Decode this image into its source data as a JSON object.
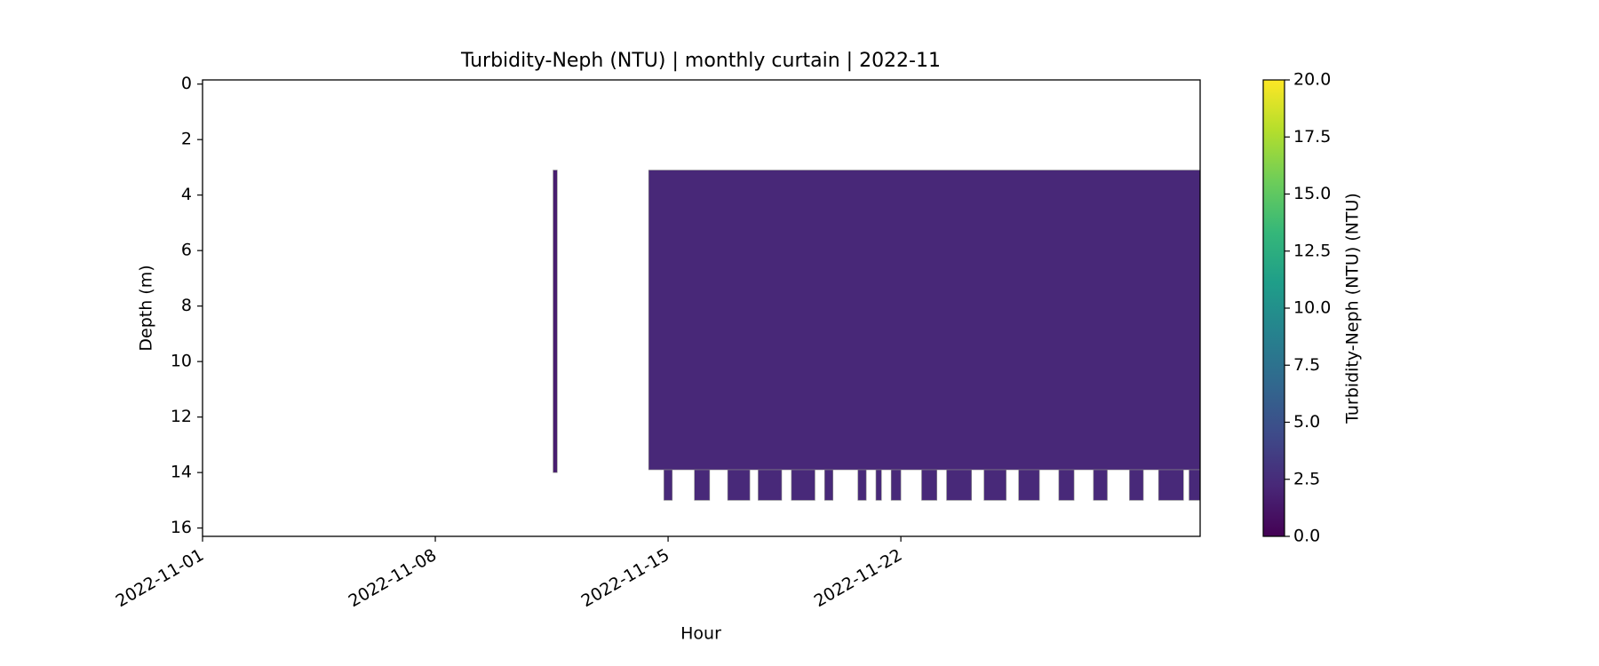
{
  "chart_data": {
    "type": "curtain",
    "title": "Turbidity-Neph (NTU) | monthly curtain | 2022-11",
    "xlabel": "Hour",
    "ylabel": "Depth (m)",
    "colorbar_label": "Turbidity-Neph (NTU) (NTU)",
    "colormap": "viridis",
    "xlim": [
      "2022-11-01",
      "2022-12-01"
    ],
    "xticks": [
      "2022-11-01",
      "2022-11-08",
      "2022-11-15",
      "2022-11-22"
    ],
    "ylim": [
      16.3,
      -0.15
    ],
    "yticks": [
      0,
      2,
      4,
      6,
      8,
      10,
      12,
      14,
      16
    ],
    "clim": [
      0,
      20
    ],
    "cticks": [
      {
        "value": 0,
        "label": "0.0"
      },
      {
        "value": 2.5,
        "label": "2.5"
      },
      {
        "value": 5,
        "label": "5.0"
      },
      {
        "value": 7.5,
        "label": "7.5"
      },
      {
        "value": 10,
        "label": "10.0"
      },
      {
        "value": 12.5,
        "label": "12.5"
      },
      {
        "value": 15,
        "label": "15.0"
      },
      {
        "value": 17.5,
        "label": "17.5"
      },
      {
        "value": 20,
        "label": "20.0"
      }
    ],
    "blocks": [
      {
        "start": "2022-11-11T13:00",
        "end": "2022-11-11T16:00",
        "top": 3.1,
        "bottom": 14.0,
        "value": 1.6
      },
      {
        "start": "2022-11-14T10:00",
        "end": "2022-12-01T00:00",
        "top": 3.1,
        "bottom": 13.9,
        "value": 2.2
      },
      {
        "start": "2022-11-14T21:00",
        "end": "2022-11-15T03:00",
        "top": 13.9,
        "bottom": 15.0,
        "value": 2.3
      },
      {
        "start": "2022-11-15T19:00",
        "end": "2022-11-16T06:00",
        "top": 13.9,
        "bottom": 15.0,
        "value": 2.3
      },
      {
        "start": "2022-11-16T19:00",
        "end": "2022-11-17T11:00",
        "top": 13.9,
        "bottom": 15.0,
        "value": 2.3
      },
      {
        "start": "2022-11-17T17:00",
        "end": "2022-11-18T10:00",
        "top": 13.9,
        "bottom": 15.0,
        "value": 2.3
      },
      {
        "start": "2022-11-18T17:00",
        "end": "2022-11-19T10:00",
        "top": 13.9,
        "bottom": 15.0,
        "value": 2.3
      },
      {
        "start": "2022-11-19T17:00",
        "end": "2022-11-19T23:00",
        "top": 13.9,
        "bottom": 15.0,
        "value": 2.3
      },
      {
        "start": "2022-11-20T17:00",
        "end": "2022-11-20T23:00",
        "top": 13.9,
        "bottom": 15.0,
        "value": 2.3
      },
      {
        "start": "2022-11-21T06:00",
        "end": "2022-11-21T10:00",
        "top": 13.9,
        "bottom": 15.0,
        "value": 2.3
      },
      {
        "start": "2022-11-21T17:00",
        "end": "2022-11-22T00:00",
        "top": 13.9,
        "bottom": 15.0,
        "value": 2.3
      },
      {
        "start": "2022-11-22T15:00",
        "end": "2022-11-23T02:00",
        "top": 13.9,
        "bottom": 15.0,
        "value": 2.3
      },
      {
        "start": "2022-11-23T09:00",
        "end": "2022-11-24T03:00",
        "top": 13.9,
        "bottom": 15.0,
        "value": 2.3
      },
      {
        "start": "2022-11-24T12:00",
        "end": "2022-11-25T04:00",
        "top": 13.9,
        "bottom": 15.0,
        "value": 2.3
      },
      {
        "start": "2022-11-25T13:00",
        "end": "2022-11-26T04:00",
        "top": 13.9,
        "bottom": 15.0,
        "value": 2.3
      },
      {
        "start": "2022-11-26T18:00",
        "end": "2022-11-27T05:00",
        "top": 13.9,
        "bottom": 15.0,
        "value": 2.3
      },
      {
        "start": "2022-11-27T19:00",
        "end": "2022-11-28T05:00",
        "top": 13.9,
        "bottom": 15.0,
        "value": 2.3
      },
      {
        "start": "2022-11-28T21:00",
        "end": "2022-11-29T07:00",
        "top": 13.9,
        "bottom": 15.0,
        "value": 2.3
      },
      {
        "start": "2022-11-29T18:00",
        "end": "2022-11-30T12:00",
        "top": 13.9,
        "bottom": 15.0,
        "value": 2.3
      },
      {
        "start": "2022-11-30T16:00",
        "end": "2022-12-01T00:00",
        "top": 13.9,
        "bottom": 15.0,
        "value": 2.3
      }
    ]
  }
}
